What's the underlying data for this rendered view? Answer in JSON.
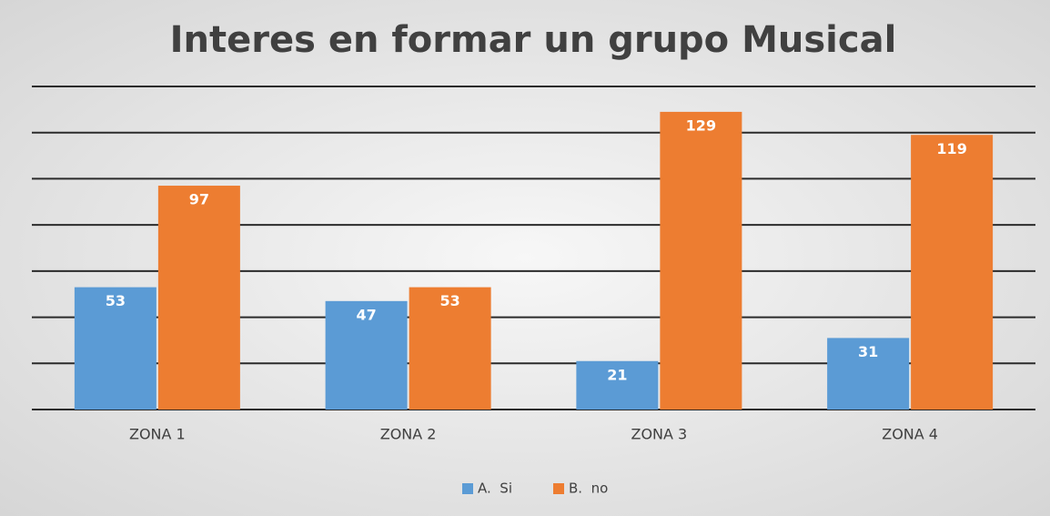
{
  "chart_data": {
    "type": "bar",
    "title": "Interes en formar un grupo Musical",
    "categories": [
      "ZONA 1",
      "ZONA 2",
      "ZONA 3",
      "ZONA 4"
    ],
    "series": [
      {
        "name": "A.  Si",
        "color": "#5b9bd5",
        "values": [
          53,
          47,
          21,
          31
        ]
      },
      {
        "name": "B.  no",
        "color": "#ed7d31",
        "values": [
          97,
          53,
          129,
          119
        ]
      }
    ],
    "ylim": [
      0,
      140
    ],
    "yticks": [
      0,
      20,
      40,
      60,
      80,
      100,
      120,
      140
    ],
    "grid": true,
    "legend": "bottom"
  }
}
